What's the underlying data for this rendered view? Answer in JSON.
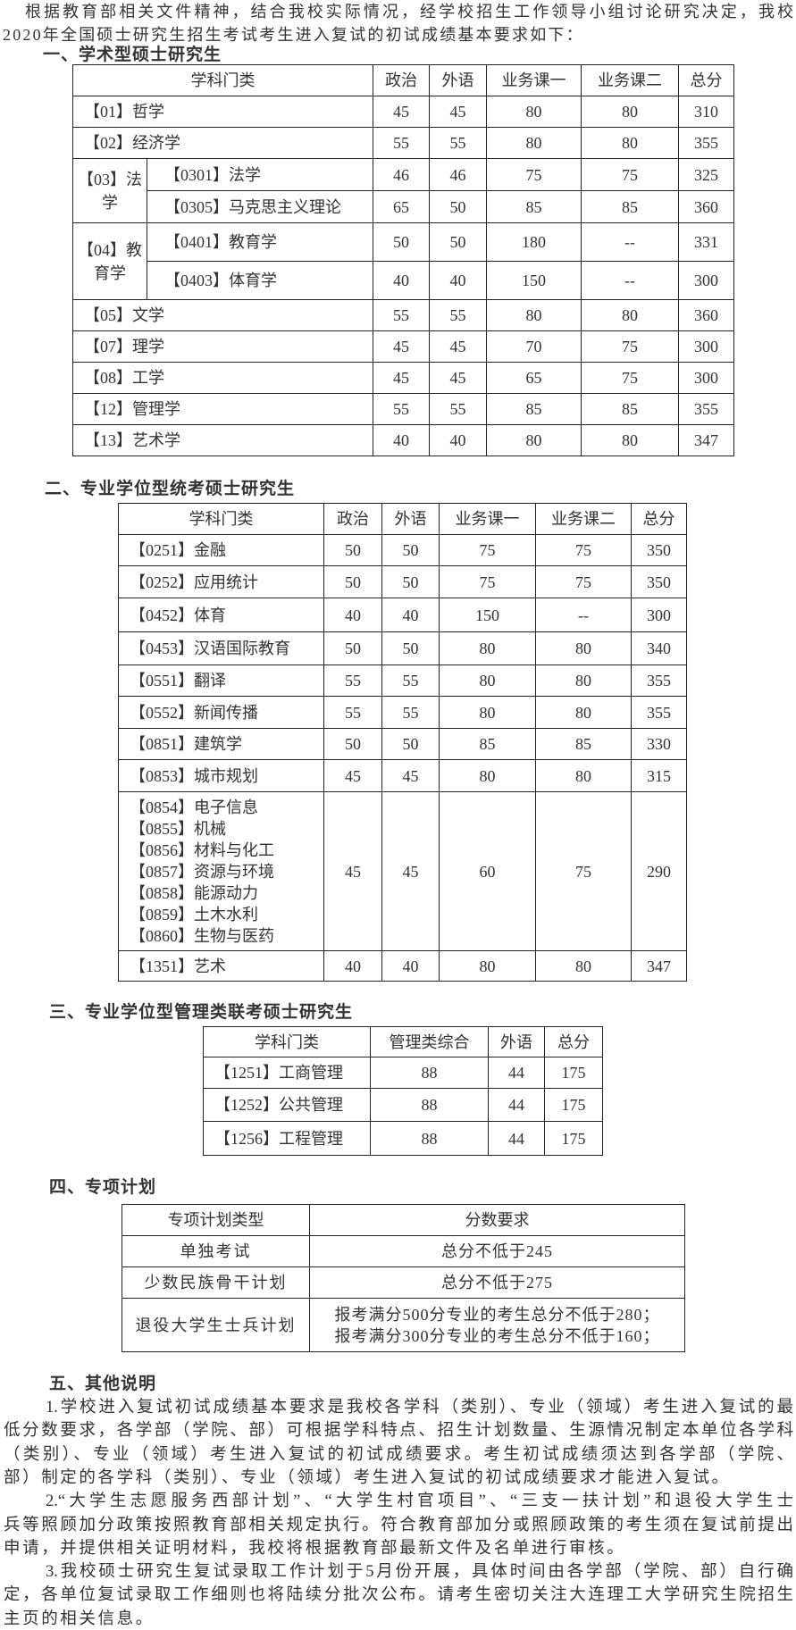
{
  "intro": {
    "lines": [
      "根据教育部相关文件精神，结合我校实际情况，经学校招生工作领导小组讨论研究决定，我校",
      "2020年全国硕士研究生招生考试考生进入复试的初试成绩基本要求如下："
    ]
  },
  "section1": {
    "heading": "一、学术型硕士研究生",
    "headers": [
      "学科门类",
      "政治",
      "外语",
      "业务课一",
      "业务课二",
      "总分"
    ],
    "rows": [
      {
        "label": "【01】哲学",
        "scores": [
          "45",
          "45",
          "80",
          "80",
          "310"
        ]
      },
      {
        "label": "【02】经济学",
        "scores": [
          "55",
          "55",
          "80",
          "80",
          "355"
        ]
      },
      {
        "group": "【03】法学",
        "children": [
          {
            "label": "【0301】法学",
            "scores": [
              "46",
              "46",
              "75",
              "75",
              "325"
            ]
          },
          {
            "label": "【0305】马克思主义理论",
            "scores": [
              "65",
              "50",
              "85",
              "85",
              "360"
            ]
          }
        ]
      },
      {
        "group": "【04】教育学",
        "children": [
          {
            "label": "【0401】教育学",
            "scores": [
              "50",
              "50",
              "180",
              "--",
              "331"
            ]
          },
          {
            "label": "【0403】体育学",
            "scores": [
              "40",
              "40",
              "150",
              "--",
              "300"
            ]
          }
        ]
      },
      {
        "label": "【05】文学",
        "scores": [
          "55",
          "55",
          "80",
          "80",
          "360"
        ]
      },
      {
        "label": "【07】理学",
        "scores": [
          "45",
          "45",
          "70",
          "75",
          "300"
        ]
      },
      {
        "label": "【08】工学",
        "scores": [
          "45",
          "45",
          "65",
          "75",
          "300"
        ]
      },
      {
        "label": "【12】管理学",
        "scores": [
          "55",
          "55",
          "85",
          "85",
          "355"
        ]
      },
      {
        "label": "【13】艺术学",
        "scores": [
          "40",
          "40",
          "80",
          "80",
          "347"
        ]
      }
    ]
  },
  "section2": {
    "heading": "二、专业学位型统考硕士研究生",
    "headers": [
      "学科门类",
      "政治",
      "外语",
      "业务课一",
      "业务课二",
      "总分"
    ],
    "rows": [
      {
        "labels": [
          "【0251】金融"
        ],
        "scores": [
          "50",
          "50",
          "75",
          "75",
          "350"
        ]
      },
      {
        "labels": [
          "【0252】应用统计"
        ],
        "scores": [
          "50",
          "50",
          "75",
          "75",
          "350"
        ]
      },
      {
        "labels": [
          "【0452】体育"
        ],
        "scores": [
          "40",
          "40",
          "150",
          "--",
          "300"
        ]
      },
      {
        "labels": [
          "【0453】汉语国际教育"
        ],
        "scores": [
          "50",
          "50",
          "80",
          "80",
          "340"
        ]
      },
      {
        "labels": [
          "【0551】翻译"
        ],
        "scores": [
          "55",
          "55",
          "80",
          "80",
          "355"
        ]
      },
      {
        "labels": [
          "【0552】新闻传播"
        ],
        "scores": [
          "55",
          "55",
          "80",
          "80",
          "355"
        ]
      },
      {
        "labels": [
          "【0851】建筑学"
        ],
        "scores": [
          "50",
          "50",
          "85",
          "85",
          "330"
        ]
      },
      {
        "labels": [
          "【0853】城市规划"
        ],
        "scores": [
          "45",
          "45",
          "80",
          "80",
          "315"
        ]
      },
      {
        "labels": [
          "【0854】电子信息",
          "【0855】机械",
          "【0856】材料与化工",
          "【0857】资源与环境",
          "【0858】能源动力",
          "【0859】土木水利",
          "【0860】生物与医药"
        ],
        "scores": [
          "45",
          "45",
          "60",
          "75",
          "290"
        ]
      },
      {
        "labels": [
          "【1351】艺术"
        ],
        "scores": [
          "40",
          "40",
          "80",
          "80",
          "347"
        ]
      }
    ]
  },
  "section3": {
    "heading": "三、专业学位型管理类联考硕士研究生",
    "headers": [
      "学科门类",
      "管理类综合",
      "外语",
      "总分"
    ],
    "rows": [
      {
        "label": "【1251】工商管理",
        "scores": [
          "88",
          "44",
          "175"
        ]
      },
      {
        "label": "【1252】公共管理",
        "scores": [
          "88",
          "44",
          "175"
        ]
      },
      {
        "label": "【1256】工程管理",
        "scores": [
          "88",
          "44",
          "175"
        ]
      }
    ]
  },
  "section4": {
    "heading": "四、专项计划",
    "headers": [
      "专项计划类型",
      "分数要求"
    ],
    "rows": [
      {
        "type": "单独考试",
        "requirement": [
          "总分不低于245"
        ]
      },
      {
        "type": "少数民族骨干计划",
        "requirement": [
          "总分不低于275"
        ]
      },
      {
        "type": "退役大学生士兵计划",
        "requirement": [
          "报考满分500分专业的考生总分不低于280；",
          "报考满分300分专业的考生总分不低于160；"
        ]
      }
    ]
  },
  "section5": {
    "heading": "五、其他说明",
    "paragraphs": [
      [
        "1.学校进入复试初试成绩基本要求是我校各学科（类别）、专业（领域）考生进入复试的最",
        "低分数要求，各学部（学院、部）可根据学科特点、招生计划数量、生源情况制定本单位各学科",
        "（类别）、专业（领域）考生进入复试的初试成绩要求。考生初试成绩须达到各学部（学院、",
        "部）制定的各学科（类别）、专业（领域）考生进入复试的初试成绩要求才能进入复试。"
      ],
      [
        "2.“大学生志愿服务西部计划”、“大学生村官项目”、“三支一扶计划”和退役大学生士",
        "兵等照顾加分政策按照教育部相关规定执行。符合教育部加分或照顾政策的考生须在复试前提出",
        "申请，并提供相关证明材料，我校将根据教育部最新文件及名单进行审核。"
      ],
      [
        "3.我校硕士研究生复试录取工作计划于5月份开展，具体时间由各学部（学院、部）自行确",
        "定，各单位复试录取工作细则也将陆续分批次公布。请考生密切关注大连理工大学研究生院招生",
        "主页的相关信息。"
      ]
    ]
  }
}
